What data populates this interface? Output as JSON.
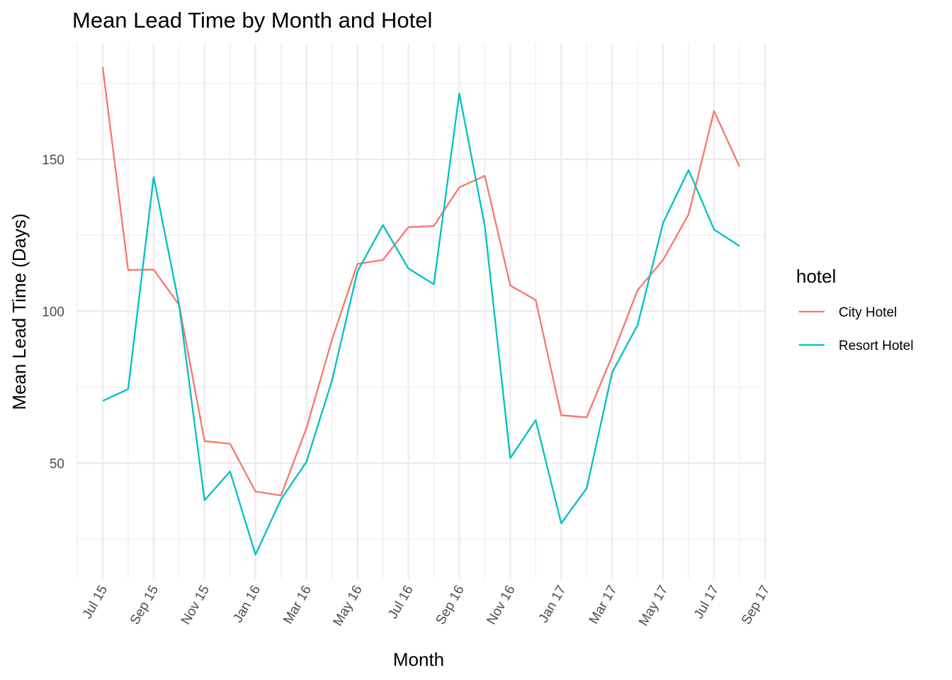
{
  "chart_data": {
    "type": "line",
    "title": "Mean Lead Time by Month and Hotel",
    "xlabel": "Month",
    "ylabel": "Mean Lead Time (Days)",
    "x": [
      "2015-07",
      "2015-08",
      "2015-09",
      "2015-10",
      "2015-11",
      "2015-12",
      "2016-01",
      "2016-02",
      "2016-03",
      "2016-04",
      "2016-05",
      "2016-06",
      "2016-07",
      "2016-08",
      "2016-09",
      "2016-10",
      "2016-11",
      "2016-12",
      "2017-01",
      "2017-02",
      "2017-03",
      "2017-04",
      "2017-05",
      "2017-06",
      "2017-07",
      "2017-08"
    ],
    "x_ticks": [
      {
        "date": "2015-07",
        "label": "Jul 15"
      },
      {
        "date": "2015-09",
        "label": "Sep 15"
      },
      {
        "date": "2015-11",
        "label": "Nov 15"
      },
      {
        "date": "2016-01",
        "label": "Jan 16"
      },
      {
        "date": "2016-03",
        "label": "Mar 16"
      },
      {
        "date": "2016-05",
        "label": "May 16"
      },
      {
        "date": "2016-07",
        "label": "Jul 16"
      },
      {
        "date": "2016-09",
        "label": "Sep 16"
      },
      {
        "date": "2016-11",
        "label": "Nov 16"
      },
      {
        "date": "2017-01",
        "label": "Jan 17"
      },
      {
        "date": "2017-03",
        "label": "Mar 17"
      },
      {
        "date": "2017-05",
        "label": "May 17"
      },
      {
        "date": "2017-07",
        "label": "Jul 17"
      },
      {
        "date": "2017-09",
        "label": "Sep 17"
      }
    ],
    "xlim": [
      "2015-06",
      "2017-09"
    ],
    "y_ticks": [
      50,
      100,
      150
    ],
    "ylim": [
      12,
      188
    ],
    "grid": true,
    "legend": {
      "title": "hotel",
      "position": "right"
    },
    "series": [
      {
        "name": "City Hotel",
        "color": "#F8766D",
        "values": [
          180.4,
          113.6,
          113.7,
          102.1,
          57.3,
          56.4,
          40.7,
          39.4,
          61.6,
          90.6,
          115.6,
          116.9,
          127.7,
          128.1,
          140.8,
          144.6,
          108.5,
          103.7,
          65.8,
          65.1,
          85.3,
          107.0,
          116.9,
          131.9,
          165.9,
          147.6
        ]
      },
      {
        "name": "Resort Hotel",
        "color": "#00BFC4",
        "values": [
          70.5,
          74.4,
          144.2,
          102.0,
          37.8,
          47.3,
          19.9,
          38.1,
          50.5,
          77.1,
          113.1,
          128.4,
          114.1,
          108.9,
          171.7,
          128.1,
          51.7,
          64.2,
          30.2,
          41.8,
          79.9,
          95.5,
          129.1,
          146.5,
          126.9,
          121.5
        ]
      }
    ]
  }
}
